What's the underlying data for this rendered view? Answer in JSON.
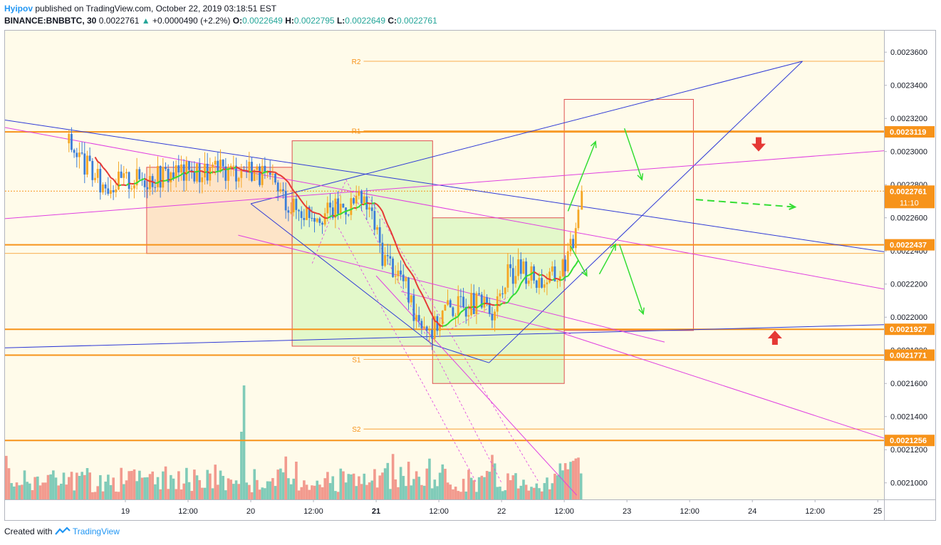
{
  "header": {
    "author": "Hyipov",
    "published": "published on TradingView.com, October 22, 2019 03:18:51 EST",
    "symbol": "BINANCE:BNBBTC, 30",
    "last": "0.0022761",
    "change": "+0.0000490 (+2.2%)",
    "open_label": "O:",
    "open": "0.0022649",
    "high_label": "H:",
    "high": "0.0022795",
    "low_label": "L:",
    "low": "0.0022649",
    "close_label": "C:",
    "close": "0.0022761"
  },
  "footer": {
    "created_with": "Created with",
    "brand": "TradingView"
  },
  "colors": {
    "background": "#fffbea",
    "orange": "#f7931a",
    "blue": "#2f3ad6",
    "magenta": "#e040e0",
    "red": "#e53935",
    "green": "#33dd33",
    "candle_up": "#f5a623",
    "candle_down": "#3b7dd8",
    "volume_up": "#80cbb8",
    "volume_down": "#f29a8e"
  },
  "chart_data": {
    "type": "candlestick",
    "y_axis": {
      "min": 0.00209,
      "max": 0.002373,
      "ticks": [
        "0.0023600",
        "0.0023400",
        "0.0023200",
        "0.0023000",
        "0.0022800",
        "0.0022600",
        "0.0022400",
        "0.0022200",
        "0.0022000",
        "0.0021800",
        "0.0021600",
        "0.0021400",
        "0.0021200",
        "0.0021000"
      ]
    },
    "x_axis": {
      "ticks": [
        {
          "t": 19,
          "label": "19",
          "bold": false
        },
        {
          "t": 19.5,
          "label": "12:00",
          "bold": false
        },
        {
          "t": 20,
          "label": "20",
          "bold": false
        },
        {
          "t": 20.5,
          "label": "12:00",
          "bold": false
        },
        {
          "t": 21,
          "label": "21",
          "bold": true
        },
        {
          "t": 21.5,
          "label": "12:00",
          "bold": false
        },
        {
          "t": 22,
          "label": "22",
          "bold": false
        },
        {
          "t": 22.5,
          "label": "12:00",
          "bold": false
        },
        {
          "t": 23,
          "label": "23",
          "bold": false
        },
        {
          "t": 23.5,
          "label": "12:00",
          "bold": false
        },
        {
          "t": 24,
          "label": "24",
          "bold": false
        },
        {
          "t": 24.5,
          "label": "12:00",
          "bold": false
        },
        {
          "t": 25,
          "label": "25",
          "bold": false
        }
      ]
    },
    "price_labels": [
      {
        "value": 0.0023119,
        "text": "0.0023119"
      },
      {
        "value": 0.0022761,
        "text": "0.0022761",
        "sub": "11:10"
      },
      {
        "value": 0.0022437,
        "text": "0.0022437"
      },
      {
        "value": 0.0021927,
        "text": "0.0021927"
      },
      {
        "value": 0.0021771,
        "text": "0.0021771"
      },
      {
        "value": 0.0021256,
        "text": "0.0021256"
      }
    ],
    "pivots": [
      {
        "label": "R2",
        "value": 0.0023545
      },
      {
        "label": "R1",
        "value": 0.0023125
      },
      {
        "label": "S1",
        "value": 0.0021745
      },
      {
        "label": "S2",
        "value": 0.0021325
      }
    ],
    "path": [
      [
        18.55,
        0.002305
      ],
      [
        18.8,
        0.00228
      ],
      [
        19.0,
        0.002282
      ],
      [
        19.4,
        0.002287
      ],
      [
        19.8,
        0.002288
      ],
      [
        20.0,
        0.00229
      ],
      [
        20.2,
        0.002278
      ],
      [
        20.35,
        0.002265
      ],
      [
        20.6,
        0.002263
      ],
      [
        20.85,
        0.00227
      ],
      [
        20.95,
        0.002265
      ],
      [
        21.05,
        0.002238
      ],
      [
        21.2,
        0.002225
      ],
      [
        21.3,
        0.002205
      ],
      [
        21.45,
        0.002192
      ],
      [
        21.55,
        0.002205
      ],
      [
        21.75,
        0.002208
      ],
      [
        21.95,
        0.002205
      ],
      [
        22.05,
        0.002225
      ],
      [
        22.15,
        0.00223
      ],
      [
        22.3,
        0.002222
      ],
      [
        22.45,
        0.002225
      ],
      [
        22.57,
        0.002244
      ],
      [
        22.62,
        0.002276
      ]
    ]
  }
}
